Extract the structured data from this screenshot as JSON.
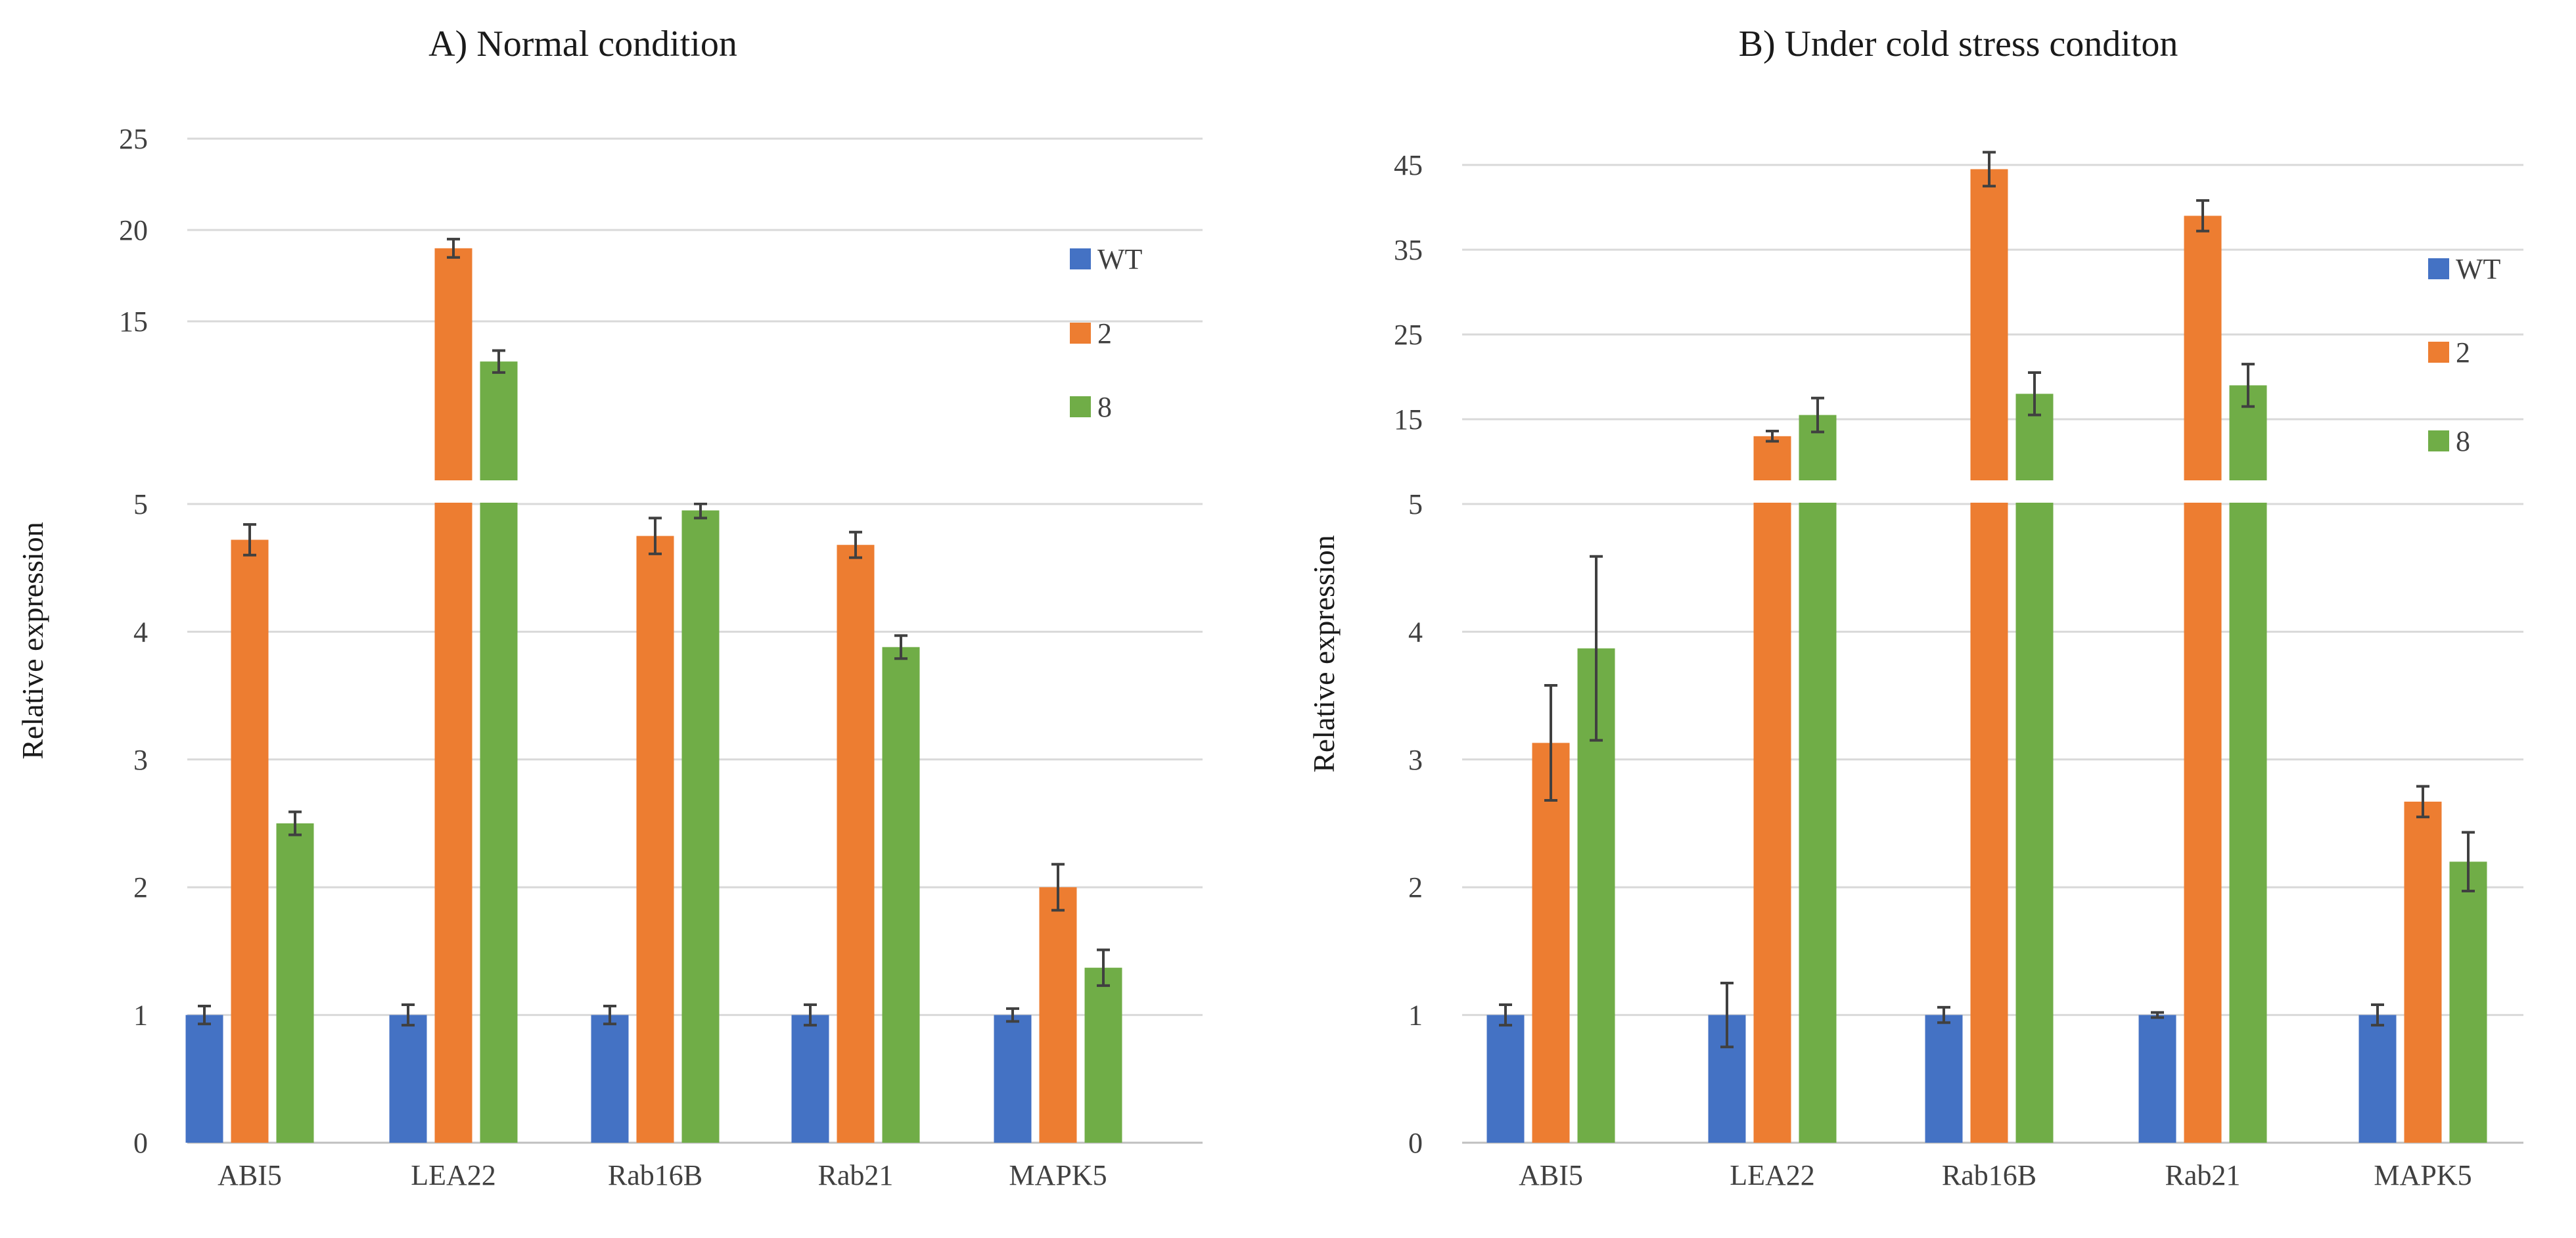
{
  "colors": {
    "WT": "#4472c4",
    "2": "#ed7d31",
    "8": "#70ad47"
  },
  "chart_data": [
    {
      "type": "bar",
      "title": "A) Normal condition",
      "ylabel": "Relative expression",
      "xlabel": "",
      "categories": [
        "ABI5",
        "LEA22",
        "Rab16B",
        "Rab21",
        "MAPK5"
      ],
      "legend_position": "top-right",
      "axis_break": {
        "lower_range": [
          0,
          5
        ],
        "upper_range": [
          5,
          25
        ]
      },
      "y_ticks_lower": [
        "0",
        "1",
        "2",
        "3",
        "4",
        "5"
      ],
      "y_ticks_upper": [
        "15",
        "20",
        "25"
      ],
      "series": [
        {
          "name": "WT",
          "values": [
            1.0,
            1.0,
            1.0,
            1.0,
            1.0
          ],
          "errors": [
            0.07,
            0.08,
            0.07,
            0.08,
            0.05
          ]
        },
        {
          "name": "2",
          "values": [
            4.72,
            19.0,
            4.75,
            4.68,
            2.0
          ],
          "errors": [
            0.12,
            0.5,
            0.14,
            0.1,
            0.18
          ]
        },
        {
          "name": "8",
          "values": [
            2.5,
            12.8,
            4.95,
            3.88,
            1.37
          ],
          "errors": [
            0.09,
            0.6,
            0.06,
            0.09,
            0.14
          ]
        }
      ]
    },
    {
      "type": "bar",
      "title": "B) Under  cold stress conditon",
      "ylabel": "Relative expression",
      "xlabel": "",
      "categories": [
        "ABI5",
        "LEA22",
        "Rab16B",
        "Rab21",
        "MAPK5"
      ],
      "legend_position": "top-right",
      "axis_break": {
        "lower_range": [
          0,
          5
        ],
        "upper_range": [
          5,
          45
        ]
      },
      "y_ticks_lower": [
        "0",
        "1",
        "2",
        "3",
        "4",
        "5"
      ],
      "y_ticks_upper": [
        "15",
        "25",
        "35",
        "45"
      ],
      "series": [
        {
          "name": "WT",
          "values": [
            1.0,
            1.0,
            1.0,
            1.0,
            1.0
          ],
          "errors": [
            0.08,
            0.25,
            0.06,
            0.02,
            0.08
          ]
        },
        {
          "name": "2",
          "values": [
            3.13,
            13.0,
            44.5,
            39.0,
            2.67
          ],
          "errors": [
            0.45,
            0.6,
            2.0,
            1.8,
            0.12
          ]
        },
        {
          "name": "8",
          "values": [
            3.87,
            15.5,
            18.0,
            19.0,
            2.2
          ],
          "errors": [
            0.72,
            2.0,
            2.5,
            2.5,
            0.23
          ]
        }
      ]
    }
  ]
}
